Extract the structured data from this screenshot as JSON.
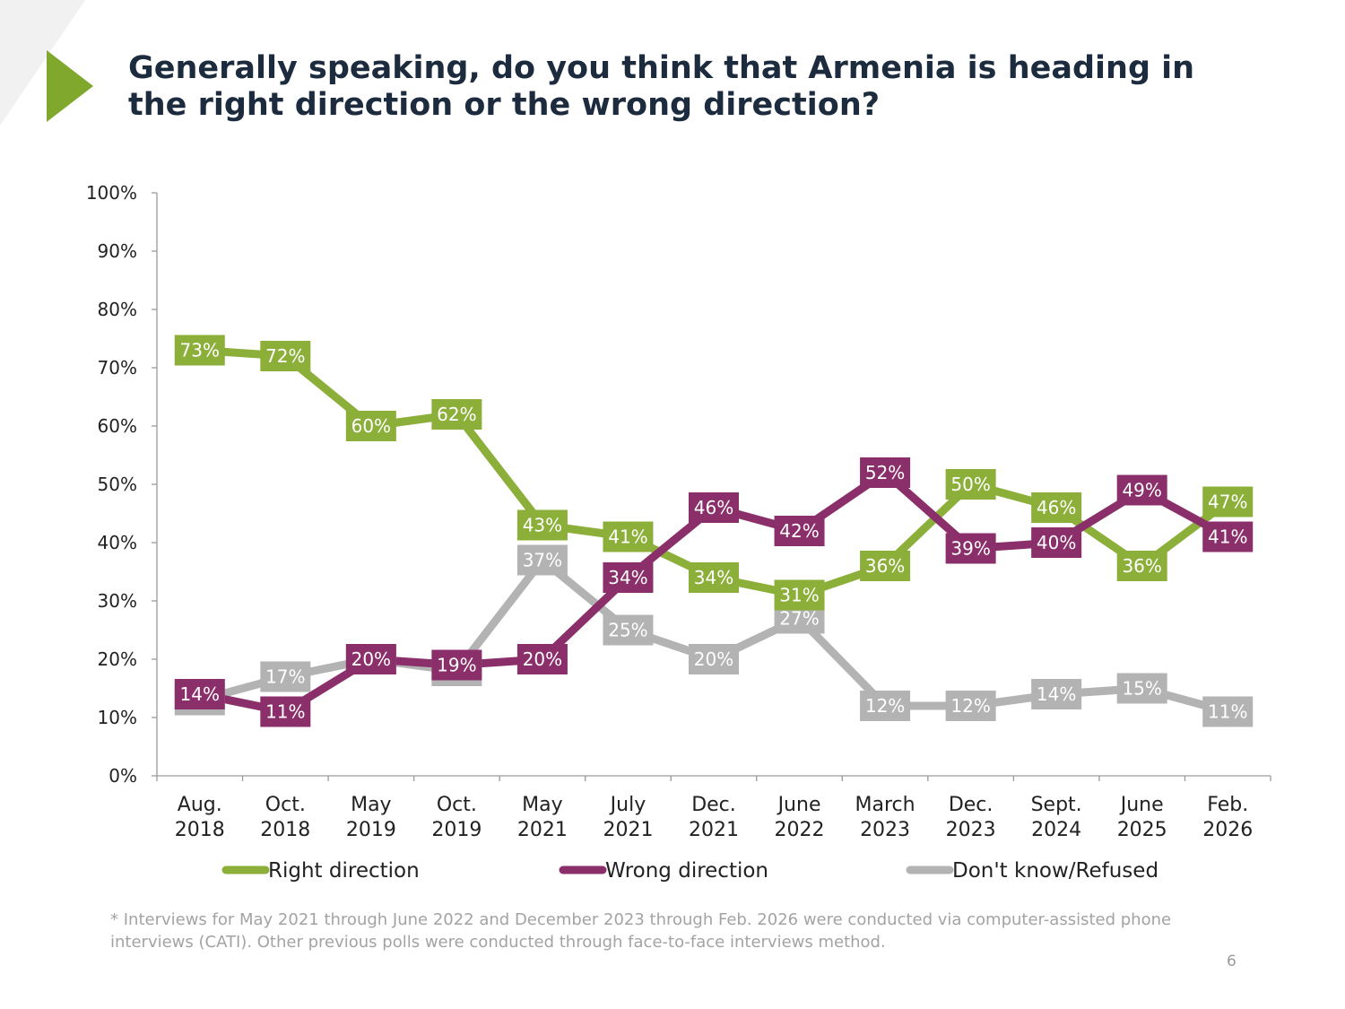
{
  "slide": {
    "title": "Generally speaking, do you think that Armenia is heading in the right direction or the wrong direction?",
    "footnote": "* Interviews for May 2021 through June 2022 and December 2023 through Feb. 2026 were conducted via computer-assisted phone interviews (CATI). Other previous polls were conducted through face-to-face interviews method.",
    "page_number": "6",
    "accent_color": "#7fa82d"
  },
  "chart_data": {
    "type": "line",
    "title": "Generally speaking, do you think that Armenia is heading in the right direction or the wrong direction?",
    "categories": [
      [
        "Aug.",
        "2018"
      ],
      [
        "Oct.",
        "2018"
      ],
      [
        "May",
        "2019"
      ],
      [
        "Oct.",
        "2019"
      ],
      [
        "May",
        "2021"
      ],
      [
        "July",
        "2021"
      ],
      [
        "Dec.",
        "2021"
      ],
      [
        "June",
        "2022"
      ],
      [
        "March",
        "2023"
      ],
      [
        "Dec.",
        "2023"
      ],
      [
        "Sept.",
        "2024"
      ],
      [
        "June",
        "2025"
      ],
      [
        "Feb.",
        "2026"
      ]
    ],
    "ylim": [
      0,
      100
    ],
    "ytick_step": 10,
    "ytick_suffix": "%",
    "series": [
      {
        "name": "Right direction",
        "color": "#8caf3a",
        "values": [
          73,
          72,
          60,
          62,
          43,
          41,
          34,
          31,
          36,
          50,
          46,
          36,
          47
        ]
      },
      {
        "name": "Wrong direction",
        "color": "#8b2f6b",
        "values": [
          14,
          11,
          20,
          19,
          20,
          34,
          46,
          42,
          52,
          39,
          40,
          49,
          41
        ]
      },
      {
        "name": "Don't know/Refused",
        "color": "#b3b3b3",
        "values": [
          13,
          17,
          20,
          18,
          37,
          25,
          20,
          27,
          12,
          12,
          14,
          15,
          11
        ]
      }
    ],
    "legend_position": "bottom-center"
  }
}
